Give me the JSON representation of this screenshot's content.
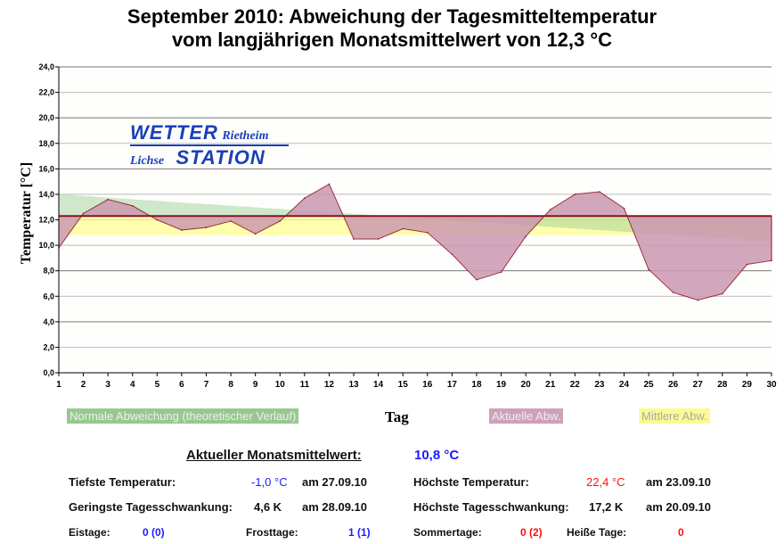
{
  "title_line1": "September 2010: Abweichung der Tagesmitteltemperatur",
  "title_line2": "vom langjährigen Monatsmittelwert von 12,3 °C",
  "logo": {
    "line1a": "WETTER",
    "line1b": "Rietheim",
    "line2a": "Lichse",
    "line2b": "STATION"
  },
  "chart_data": {
    "type": "area",
    "xlabel": "Tag",
    "ylabel": "Temperatur [°C]",
    "ylim": [
      0,
      24
    ],
    "yticks": [
      "0,0",
      "2,0",
      "4,0",
      "6,0",
      "8,0",
      "10,0",
      "12,0",
      "14,0",
      "16,0",
      "18,0",
      "20,0",
      "22,0",
      "24,0"
    ],
    "x": [
      1,
      2,
      3,
      4,
      5,
      6,
      7,
      8,
      9,
      10,
      11,
      12,
      13,
      14,
      15,
      16,
      17,
      18,
      19,
      20,
      21,
      22,
      23,
      24,
      25,
      26,
      27,
      28,
      29,
      30
    ],
    "reference": 12.3,
    "series": [
      {
        "name": "Normale Abweichung (theoretischer Verlauf)",
        "color": "#9fcf98",
        "start": 14.0,
        "end": 10.3
      },
      {
        "name": "Aktuelle Abw.",
        "color": "#cc99b0",
        "values": [
          9.8,
          12.5,
          13.6,
          13.1,
          12.0,
          11.2,
          11.4,
          11.9,
          10.9,
          11.9,
          13.7,
          14.8,
          10.5,
          10.5,
          11.3,
          11.0,
          9.3,
          7.3,
          7.9,
          10.7,
          12.8,
          14.0,
          14.2,
          12.9,
          8.1,
          6.3,
          5.7,
          6.2,
          8.5,
          8.8
        ]
      },
      {
        "name": "Mittlere Abw.",
        "color": "#ffff99",
        "value": 10.8
      }
    ]
  },
  "stats": {
    "mean_label": "Aktueller Monatsmittelwert:",
    "mean_value": "10,8 °C",
    "min_label": "Tiefste Temperatur:",
    "min_value": "-1,0 °C",
    "min_date": "am 27.09.10",
    "max_label": "Höchste Temperatur:",
    "max_value": "22,4 °C",
    "max_date": "am 23.09.10",
    "minswing_label": "Geringste Tagesschwankung:",
    "minswing_value": "4,6 K",
    "minswing_date": "am 28.09.10",
    "maxswing_label": "Höchste Tagesschwankung:",
    "maxswing_value": "17,2 K",
    "maxswing_date": "am 20.09.10",
    "eistage_label": "Eistage:",
    "eistage_value": "0 (0)",
    "frosttage_label": "Frosttage:",
    "frosttage_value": "1 (1)",
    "sommertage_label": "Sommertage:",
    "sommertage_value": "0 (2)",
    "heisse_label": "Heiße Tage:",
    "heisse_value": "0"
  }
}
